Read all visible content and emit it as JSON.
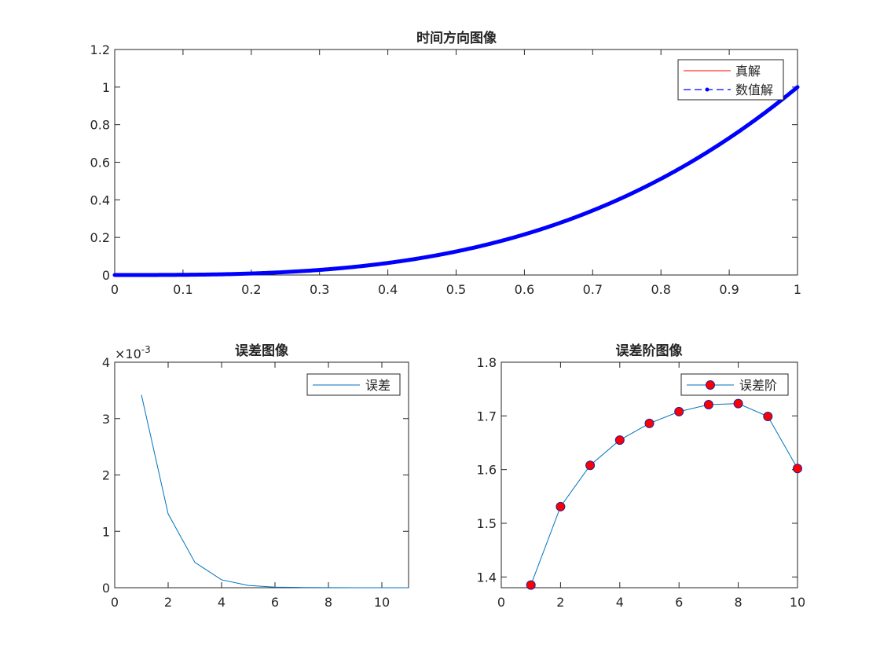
{
  "chart_data": [
    {
      "type": "line",
      "title": "时间方向图像",
      "xlim": [
        0,
        1
      ],
      "ylim": [
        0,
        1.2
      ],
      "xticks": [
        "0",
        "0.1",
        "0.2",
        "0.3",
        "0.4",
        "0.5",
        "0.6",
        "0.7",
        "0.8",
        "0.9",
        "1"
      ],
      "yticks": [
        "0",
        "0.2",
        "0.4",
        "0.6",
        "0.8",
        "1",
        "1.2"
      ],
      "legend_position": "top-right",
      "series": [
        {
          "name": "真解",
          "function": "t^3",
          "color": "#ff0000",
          "style": "solid line"
        },
        {
          "name": "数值解",
          "function": "t^3",
          "color": "#0000ff",
          "style": "dashed line with dot markers"
        }
      ]
    },
    {
      "type": "line",
      "title": "误差图像",
      "xlim": [
        0,
        11
      ],
      "ylim": [
        0,
        0.004
      ],
      "xticks": [
        "0",
        "2",
        "4",
        "6",
        "8",
        "10"
      ],
      "yticks": [
        "0",
        "1",
        "2",
        "3",
        "4"
      ],
      "y_exponent_label": "×10-3",
      "legend_position": "top-right",
      "series": [
        {
          "name": "误差",
          "color": "#0072bd",
          "x": [
            1,
            2,
            3,
            4,
            5,
            6,
            7,
            8,
            9,
            10,
            11
          ],
          "values": [
            0.00342,
            0.00131,
            0.00045,
            0.00014,
            4e-05,
            1e-05,
            4e-06,
            1e-06,
            4e-07,
            1e-07,
            5e-08
          ]
        }
      ]
    },
    {
      "type": "line",
      "title": "误差阶图像",
      "xlim": [
        0,
        10
      ],
      "ylim": [
        1.38,
        1.8
      ],
      "xticks": [
        "0",
        "2",
        "4",
        "6",
        "8",
        "10"
      ],
      "yticks": [
        "1.4",
        "1.5",
        "1.6",
        "1.7",
        "1.8"
      ],
      "legend_position": "top-right",
      "series": [
        {
          "name": "误差阶",
          "color": "#0072bd",
          "marker_fill": "#ff0000",
          "x": [
            1,
            2,
            3,
            4,
            5,
            6,
            7,
            8,
            9,
            10
          ],
          "values": [
            1.385,
            1.531,
            1.608,
            1.655,
            1.686,
            1.708,
            1.721,
            1.723,
            1.699,
            1.602
          ]
        }
      ]
    }
  ]
}
